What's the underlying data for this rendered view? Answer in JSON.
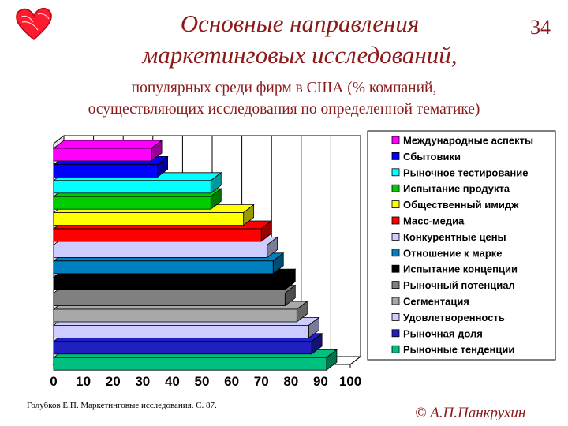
{
  "header": {
    "page_number": "34",
    "title_line1": "Основные направления",
    "title_line2": "маркетинговых исследований,",
    "subtitle_line1": "популярных среди фирм в США  (% компаний,",
    "subtitle_line2": "осуществляющих исследования по определенной тематике)"
  },
  "footer": {
    "source": "Голубков Е.П. Маркетинговые исследования. С. 87.",
    "copyright": "© А.П.Панкрухин"
  },
  "chart_data": {
    "type": "bar",
    "orientation": "horizontal",
    "style": "3d",
    "categories": [
      "Международные аспекты",
      "Сбытовики",
      "Рыночное тестирование",
      "Испытание продукта",
      "Общественный имидж",
      "Масс-медиа",
      "Конкурентные цены",
      "Отношение к марке",
      "Испытание концепции",
      "Рыночный потенциал",
      "Сегментация",
      "Удовлетворенность",
      "Рыночная доля",
      "Рыночные тенденции"
    ],
    "values": [
      33,
      35,
      53,
      53,
      64,
      70,
      72,
      74,
      78,
      78,
      82,
      86,
      87,
      92
    ],
    "colors": [
      "#ff00ff",
      "#0000ff",
      "#00ffff",
      "#00cc00",
      "#ffff00",
      "#ff0000",
      "#ccccff",
      "#0080c0",
      "#000000",
      "#808080",
      "#a8a8a8",
      "#ccccff",
      "#2020c0",
      "#00c080"
    ],
    "xlim": [
      0,
      100
    ],
    "xticks": [
      "0",
      "10",
      "20",
      "30",
      "40",
      "50",
      "60",
      "70",
      "80",
      "90",
      "100"
    ],
    "legend_position": "right",
    "grid": true
  }
}
